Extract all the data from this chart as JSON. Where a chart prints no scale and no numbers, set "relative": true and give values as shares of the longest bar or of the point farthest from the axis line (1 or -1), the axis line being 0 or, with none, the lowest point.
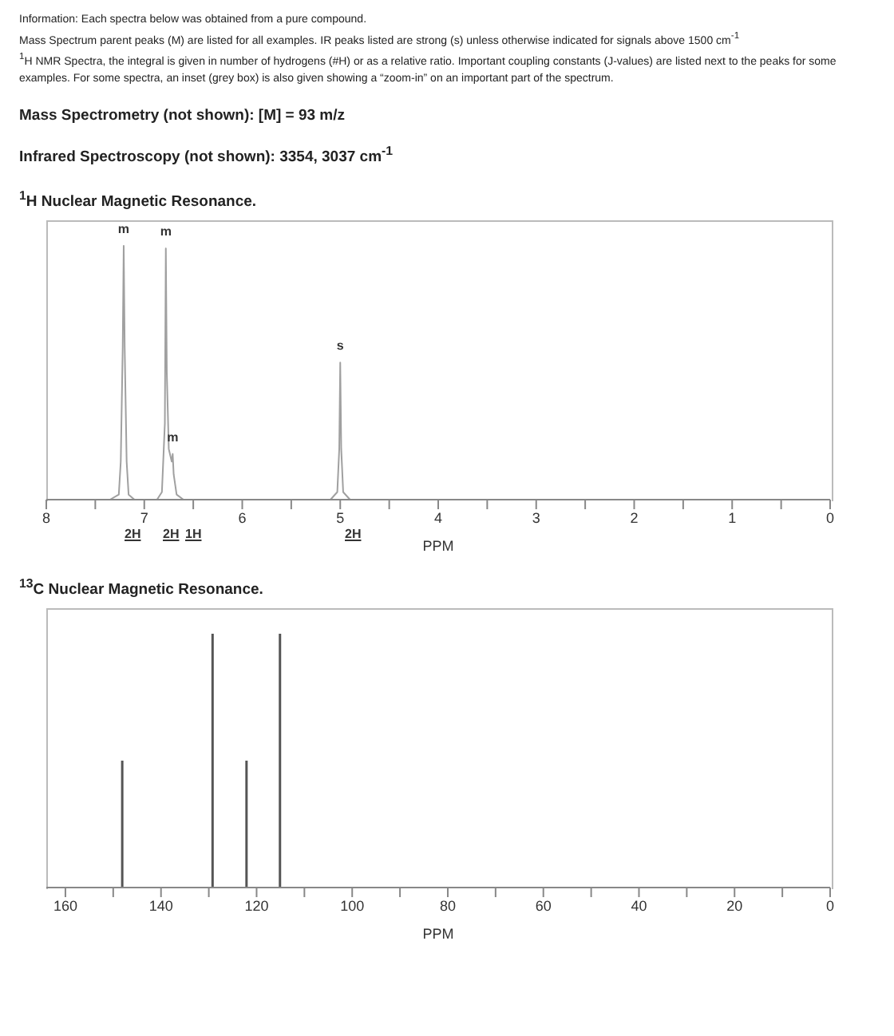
{
  "chart_data": [
    {
      "type": "line",
      "title": "$^{1}$H Nuclear Magnetic Resonance.",
      "xlabel": "PPM",
      "relative": true,
      "grid": false,
      "legend": false,
      "marker": "none",
      "line_style": "solid",
      "annotations": [
        "Information:  Each spectra below was obtained from a pure compound.",
        "Mass Spectrum parent peaks (M) are listed for all examples.  IR peaks listed are strong (s) unless otherwise indicated for signals above 1500 cm$^{-1}$",
        "$^{1}$H NMR Spectra, the integral is given in number of hydrogens (#H) or as a relative ratio. Important coupling constants (J-values) are listed next to the peaks for some examples. For some spectra, an inset (grey box) is also given showing a “zoom-in” on an important part of the spectrum.",
        "Mass Spectrometry (not shown): [M] = 93 m/z",
        "Infrared Spectroscopy (not shown): 3354, 3037 cm$^{-1}$",
        {
          "text": "m",
          "x": 7.21,
          "y": 1
        },
        {
          "text": "m",
          "x": 6.78,
          "y": 0.99
        },
        {
          "text": "m",
          "x": 6.71,
          "y": 0.18
        },
        {
          "text": "s",
          "x": 5.0,
          "y": 0.54
        },
        "2H",
        "2H",
        "1H",
        "2H"
      ],
      "xlim": [
        8,
        0
      ],
      "xticks": [
        8,
        {
          "value": 7.5,
          "label": null
        },
        7,
        {
          "value": 6.5,
          "label": null
        },
        6,
        {
          "value": 5.5,
          "label": null
        },
        5,
        {
          "value": 4.5,
          "label": null
        },
        4,
        {
          "value": 3.5,
          "label": null
        },
        3,
        {
          "value": 2.5,
          "label": null
        },
        2,
        {
          "value": 1.5,
          "label": null
        },
        1,
        {
          "value": 0.5,
          "label": null
        },
        0
      ],
      "series": [
        {
          "color": "#a0a0a0",
          "x": [
            8,
            7.35,
            7.26,
            7.24,
            7.22,
            7.21,
            7.2,
            7.18,
            7.16,
            7.1,
            6.87,
            6.82,
            6.79,
            6.78,
            6.77,
            6.75,
            6.72,
            6.71,
            6.7,
            6.67,
            6.6,
            5.1,
            5.03,
            5.01,
            5.0,
            4.99,
            4.97,
            4.9,
            0
          ],
          "values": [
            0,
            0,
            0.02,
            0.15,
            0.6,
            1,
            0.6,
            0.15,
            0.02,
            0,
            0,
            0.03,
            0.3,
            0.99,
            0.5,
            0.2,
            0.15,
            0.18,
            0.1,
            0.02,
            0,
            0,
            0.03,
            0.2,
            0.54,
            0.2,
            0.03,
            0,
            0
          ]
        }
      ]
    },
    {
      "type": "bar",
      "title": "$^{13}$C Nuclear Magnetic Resonance.",
      "xlabel": "PPM",
      "relative": true,
      "grid": false,
      "legend": false,
      "xlim": [
        164,
        0
      ],
      "xticks": [
        160,
        {
          "value": 150,
          "label": null
        },
        140,
        {
          "value": 130,
          "label": null
        },
        120,
        {
          "value": 110,
          "label": null
        },
        100,
        {
          "value": 90,
          "label": null
        },
        80,
        {
          "value": 70,
          "label": null
        },
        60,
        {
          "value": 50,
          "label": null
        },
        40,
        {
          "value": 30,
          "label": null
        },
        20,
        {
          "value": 10,
          "label": null
        },
        0
      ],
      "x": [
        148.2,
        129.3,
        122.2,
        115.2
      ],
      "series": [
        {
          "color": "#555555",
          "values": [
            0.5,
            1,
            0.5,
            1
          ]
        }
      ]
    }
  ]
}
